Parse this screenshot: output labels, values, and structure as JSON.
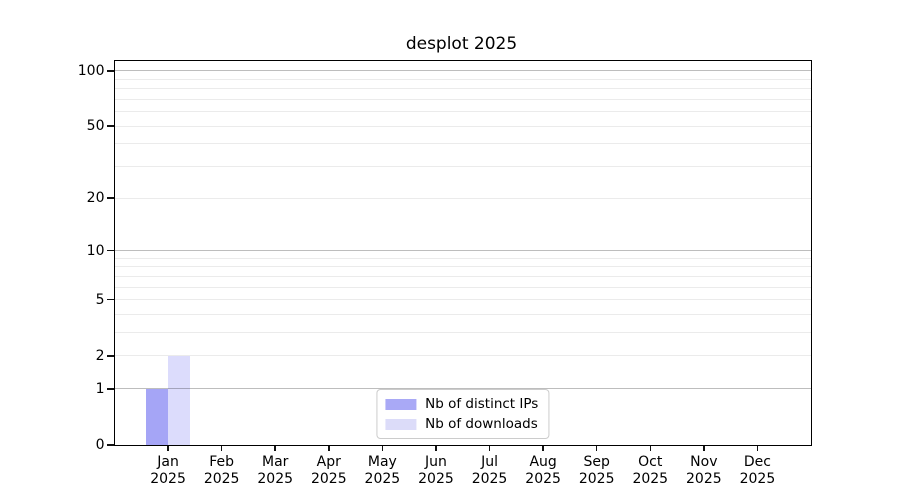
{
  "title": "desplot 2025",
  "chart_data": {
    "type": "bar",
    "title": "desplot 2025",
    "months": [
      "Jan",
      "Feb",
      "Mar",
      "Apr",
      "May",
      "Jun",
      "Jul",
      "Aug",
      "Sep",
      "Oct",
      "Nov",
      "Dec"
    ],
    "year": "2025",
    "categories": [
      "Jan 2025",
      "Feb 2025",
      "Mar 2025",
      "Apr 2025",
      "May 2025",
      "Jun 2025",
      "Jul 2025",
      "Aug 2025",
      "Sep 2025",
      "Oct 2025",
      "Nov 2025",
      "Dec 2025"
    ],
    "series": [
      {
        "name": "Nb of distinct IPs",
        "color_hex": "#a9a9f6",
        "fill": "rgba(105,105,240,0.60)",
        "values": [
          1,
          0,
          0,
          0,
          0,
          0,
          0,
          0,
          0,
          0,
          0,
          0
        ]
      },
      {
        "name": "Nb of downloads",
        "color_hex": "#dcdcf9",
        "fill": "rgba(105,105,240,0.23)",
        "values": [
          2,
          0,
          0,
          0,
          0,
          0,
          0,
          0,
          0,
          0,
          0,
          0
        ]
      }
    ],
    "yticks": [
      0,
      1,
      2,
      5,
      10,
      20,
      50,
      100
    ],
    "major_gridlines": [
      1,
      10,
      100
    ],
    "minor_gridlines": [
      2,
      3,
      4,
      5,
      6,
      7,
      8,
      9,
      20,
      30,
      40,
      50,
      60,
      70,
      80,
      90
    ],
    "yscale": "log1p",
    "ylim": [
      0,
      113
    ],
    "xlabel": "",
    "ylabel": "",
    "grid": true,
    "legend_position": "lower center",
    "background_color": "#ffffff",
    "axis_color": "#000000"
  }
}
